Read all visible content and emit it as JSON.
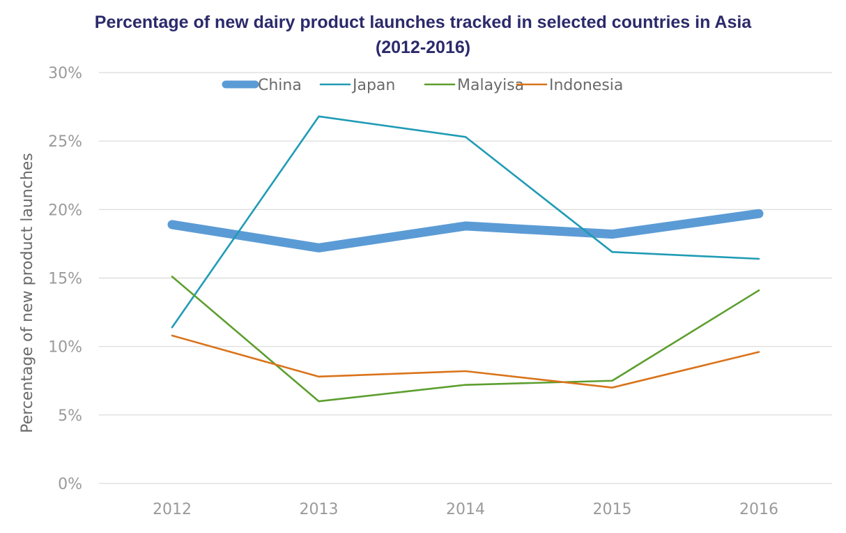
{
  "chart_data": {
    "type": "line",
    "title_line1": "Percentage of new dairy product launches tracked in selected countries in Asia",
    "title_line2": "(2012-2016)",
    "ylabel": "Percentage of new product launches",
    "xlabel": "",
    "categories": [
      "2012",
      "2013",
      "2014",
      "2015",
      "2016"
    ],
    "yticks": [
      "0%",
      "5%",
      "10%",
      "15%",
      "20%",
      "25%",
      "30%"
    ],
    "ylim": [
      0,
      30
    ],
    "grid": true,
    "legend_position": "top",
    "series": [
      {
        "name": "China",
        "color": "#5b9bd5",
        "values": [
          18.9,
          17.2,
          18.8,
          18.2,
          19.7
        ],
        "emphasis": "thick"
      },
      {
        "name": "Japan",
        "color": "#1f9bb5",
        "values": [
          11.4,
          26.8,
          25.3,
          16.9,
          16.4
        ]
      },
      {
        "name": "Malayisa",
        "color": "#5c9e2e",
        "values": [
          15.1,
          6.0,
          7.2,
          7.5,
          14.1
        ]
      },
      {
        "name": "Indonesia",
        "color": "#d9731a",
        "values": [
          10.8,
          7.8,
          8.2,
          7.0,
          9.6
        ]
      }
    ]
  }
}
